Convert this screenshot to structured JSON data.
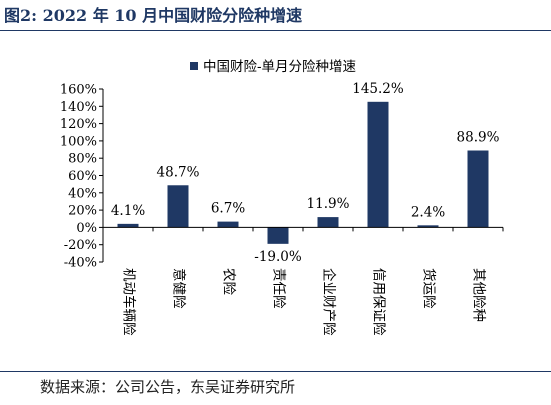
{
  "header": {
    "title": "图2: 2022 年 10 月中国财险分险种增速"
  },
  "footer": {
    "source": "数据来源：公司公告，东吴证券研究所"
  },
  "chart_data": {
    "type": "bar",
    "series": [
      {
        "name": "中国财险-单月分险种增速",
        "values": [
          4.1,
          48.7,
          6.7,
          -19.0,
          11.9,
          145.2,
          2.4,
          88.9
        ],
        "labels": [
          "4.1%",
          "48.7%",
          "6.7%",
          "-19.0%",
          "11.9%",
          "145.2%",
          "2.4%",
          "88.9%"
        ]
      }
    ],
    "categories": [
      "机动车辆险",
      "意健险",
      "农险",
      "责任险",
      "企业财产险",
      "信用保证险",
      "货运险",
      "其他险种"
    ],
    "ylim": [
      -40,
      160
    ],
    "yticks": [
      -40,
      -20,
      0,
      20,
      40,
      60,
      80,
      100,
      120,
      140,
      160
    ],
    "ytick_labels": [
      "-40%",
      "-20%",
      "0%",
      "20%",
      "40%",
      "60%",
      "80%",
      "100%",
      "120%",
      "140%",
      "160%"
    ],
    "legend_position": "top-right",
    "grid": false,
    "colors": {
      "bar": "#1f3864",
      "axis": "#000000"
    }
  }
}
